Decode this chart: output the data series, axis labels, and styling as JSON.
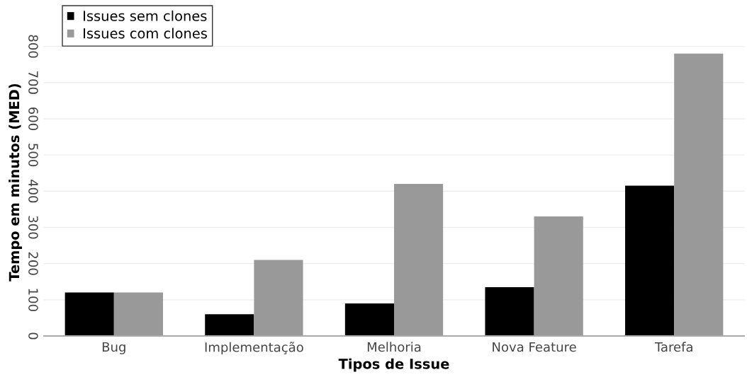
{
  "chart_data": {
    "type": "bar",
    "xlabel": "Tipos de Issue",
    "ylabel": "Tempo em minutos (MED)",
    "categories": [
      "Bug",
      "Implementação",
      "Melhoria",
      "Nova Feature",
      "Tarefa"
    ],
    "series": [
      {
        "name": "Issues sem clones",
        "color": "#000000",
        "values": [
          120,
          60,
          90,
          135,
          415
        ]
      },
      {
        "name": "Issues com clones",
        "color": "#999999",
        "values": [
          120,
          210,
          420,
          330,
          780
        ]
      }
    ],
    "ylim": [
      0,
      850
    ],
    "yticks": [
      0,
      100,
      200,
      300,
      400,
      500,
      600,
      700,
      800
    ],
    "grid": "y",
    "legend": "top left"
  }
}
